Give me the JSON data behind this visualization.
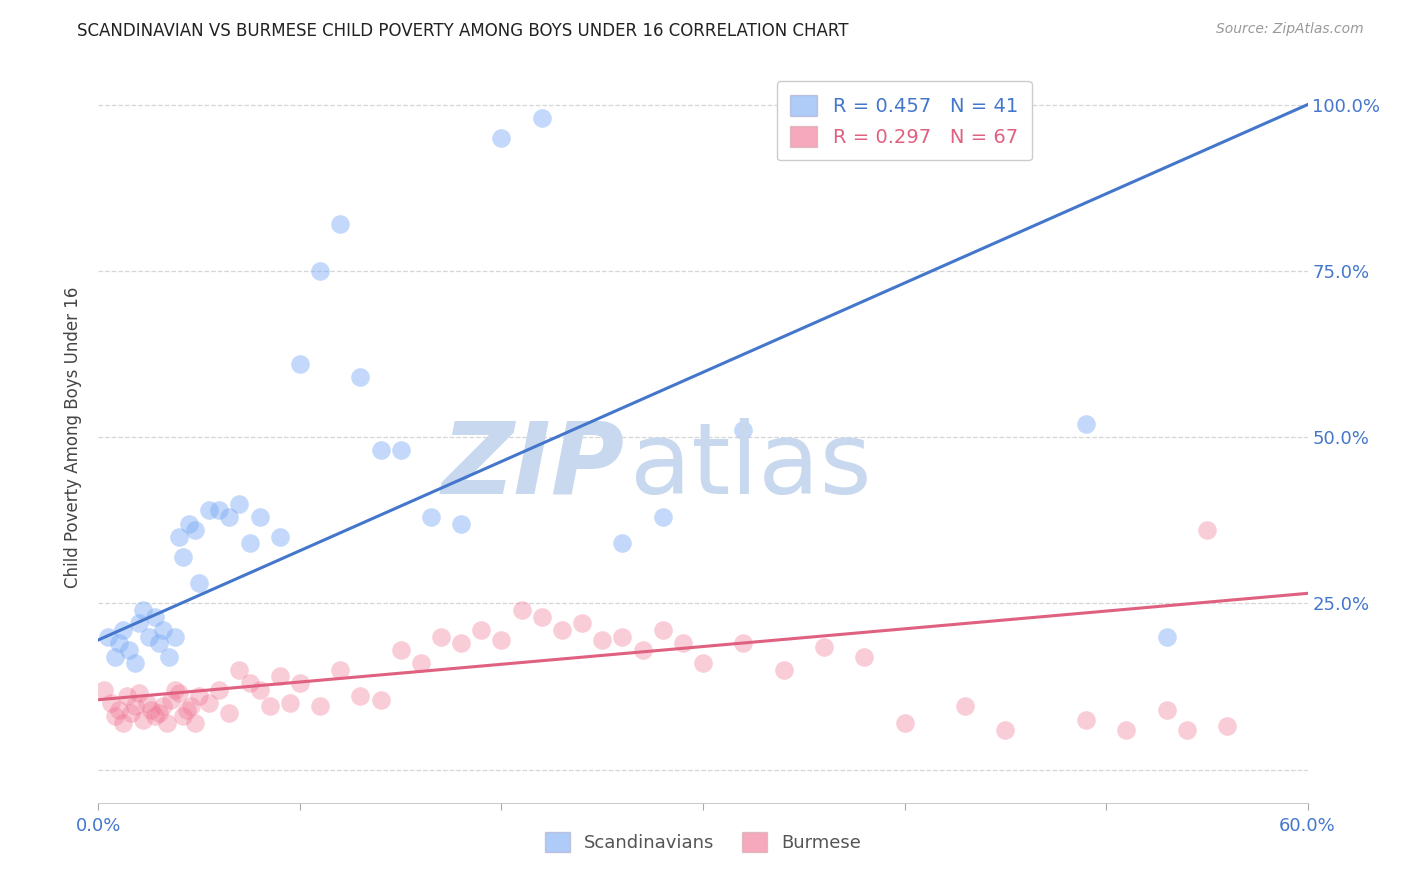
{
  "title": "SCANDINAVIAN VS BURMESE CHILD POVERTY AMONG BOYS UNDER 16 CORRELATION CHART",
  "source": "Source: ZipAtlas.com",
  "ylabel": "Child Poverty Among Boys Under 16",
  "xlim": [
    0.0,
    0.6
  ],
  "ylim": [
    -0.05,
    1.05
  ],
  "scand_R": 0.457,
  "scand_N": 41,
  "burm_R": 0.297,
  "burm_N": 67,
  "scand_color": "#7aaaf5",
  "burm_color": "#f07090",
  "scand_line_color": "#4477cc",
  "burm_line_color": "#e06080",
  "watermark_zip_color": "#c8d8ee",
  "watermark_atlas_color": "#c8d8ee",
  "scand_x": [
    0.005,
    0.008,
    0.01,
    0.012,
    0.015,
    0.018,
    0.02,
    0.022,
    0.025,
    0.028,
    0.03,
    0.032,
    0.035,
    0.038,
    0.04,
    0.042,
    0.045,
    0.048,
    0.05,
    0.055,
    0.06,
    0.065,
    0.07,
    0.075,
    0.08,
    0.09,
    0.1,
    0.11,
    0.12,
    0.13,
    0.14,
    0.15,
    0.165,
    0.18,
    0.2,
    0.22,
    0.26,
    0.28,
    0.32,
    0.49,
    0.53
  ],
  "scand_y": [
    0.2,
    0.17,
    0.19,
    0.21,
    0.18,
    0.16,
    0.22,
    0.24,
    0.2,
    0.23,
    0.19,
    0.21,
    0.17,
    0.2,
    0.35,
    0.32,
    0.37,
    0.36,
    0.28,
    0.39,
    0.39,
    0.38,
    0.4,
    0.34,
    0.38,
    0.35,
    0.61,
    0.75,
    0.82,
    0.59,
    0.48,
    0.48,
    0.38,
    0.37,
    0.95,
    0.98,
    0.34,
    0.38,
    0.51,
    0.52,
    0.2
  ],
  "burm_x": [
    0.003,
    0.006,
    0.008,
    0.01,
    0.012,
    0.014,
    0.016,
    0.018,
    0.02,
    0.022,
    0.024,
    0.026,
    0.028,
    0.03,
    0.032,
    0.034,
    0.036,
    0.038,
    0.04,
    0.042,
    0.044,
    0.046,
    0.048,
    0.05,
    0.055,
    0.06,
    0.065,
    0.07,
    0.075,
    0.08,
    0.085,
    0.09,
    0.095,
    0.1,
    0.11,
    0.12,
    0.13,
    0.14,
    0.15,
    0.16,
    0.17,
    0.18,
    0.19,
    0.2,
    0.21,
    0.22,
    0.23,
    0.24,
    0.25,
    0.26,
    0.27,
    0.28,
    0.29,
    0.3,
    0.32,
    0.34,
    0.36,
    0.38,
    0.4,
    0.43,
    0.45,
    0.49,
    0.51,
    0.53,
    0.54,
    0.55,
    0.56
  ],
  "burm_y": [
    0.12,
    0.1,
    0.08,
    0.09,
    0.07,
    0.11,
    0.085,
    0.095,
    0.115,
    0.075,
    0.1,
    0.09,
    0.08,
    0.085,
    0.095,
    0.07,
    0.105,
    0.12,
    0.115,
    0.08,
    0.09,
    0.095,
    0.07,
    0.11,
    0.1,
    0.12,
    0.085,
    0.15,
    0.13,
    0.12,
    0.095,
    0.14,
    0.1,
    0.13,
    0.095,
    0.15,
    0.11,
    0.105,
    0.18,
    0.16,
    0.2,
    0.19,
    0.21,
    0.195,
    0.24,
    0.23,
    0.21,
    0.22,
    0.195,
    0.2,
    0.18,
    0.21,
    0.19,
    0.16,
    0.19,
    0.15,
    0.185,
    0.17,
    0.07,
    0.095,
    0.06,
    0.075,
    0.06,
    0.09,
    0.06,
    0.36,
    0.065
  ],
  "scand_line_x": [
    0.0,
    0.6
  ],
  "scand_line_y": [
    0.195,
    1.0
  ],
  "burm_line_x": [
    0.0,
    0.6
  ],
  "burm_line_y": [
    0.105,
    0.265
  ],
  "figsize": [
    14.06,
    8.92
  ],
  "dpi": 100
}
